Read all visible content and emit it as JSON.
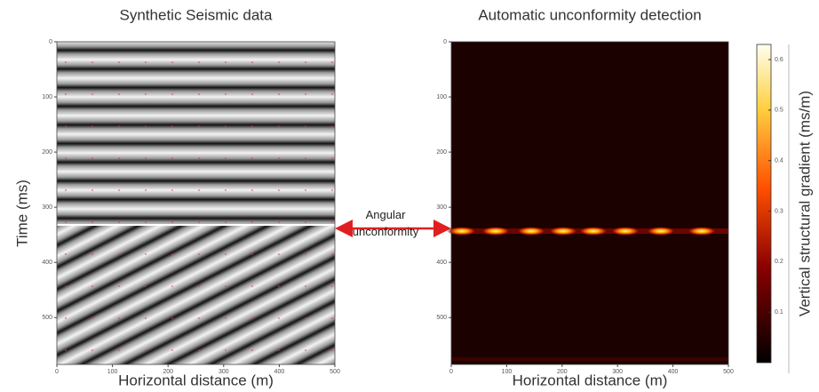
{
  "chart_data": [
    {
      "type": "image",
      "title": "Synthetic Seismic data",
      "xlabel": "Horizontal distance (m)",
      "ylabel": "Time (ms)",
      "xlim": [
        0,
        500
      ],
      "ylim": [
        0,
        585
      ],
      "invert_y": true,
      "xticks": [
        0,
        100,
        200,
        300,
        400,
        500
      ],
      "yticks": [
        0,
        100,
        200,
        300,
        400,
        500
      ]
    },
    {
      "type": "heatmap",
      "title": "Automatic unconformity detection",
      "xlabel": "Horizontal distance (m)",
      "xlim": [
        0,
        500
      ],
      "ylim": [
        0,
        585
      ],
      "invert_y": true,
      "xticks": [
        0,
        100,
        200,
        300,
        400,
        500
      ],
      "yticks": [
        0,
        100,
        200,
        300,
        400,
        500
      ],
      "colorbar": {
        "label": "Vertical structural gradient  (ms/m)",
        "lim": [
          0,
          0.63
        ],
        "ticks": [
          0.1,
          0.2,
          0.3,
          0.4,
          0.5,
          0.6
        ],
        "colormap": "afmhot"
      }
    }
  ],
  "annotation": "Angular unconformity"
}
